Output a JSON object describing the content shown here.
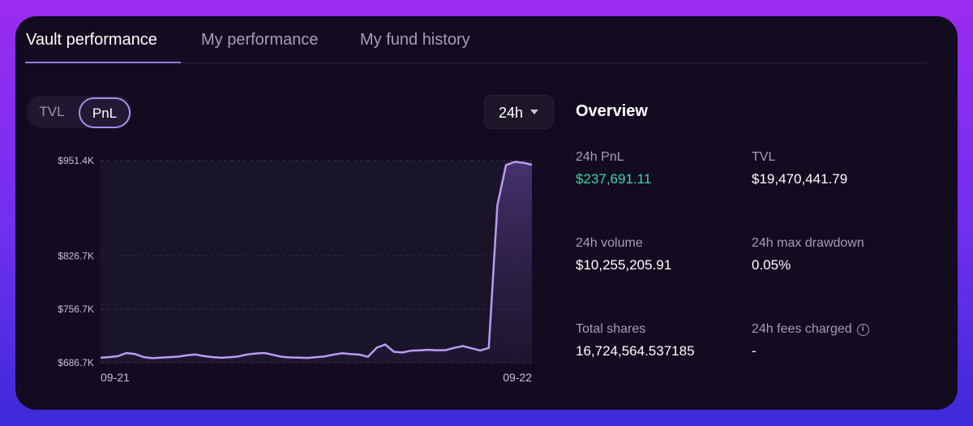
{
  "tabs": [
    "Vault performance",
    "My performance",
    "My fund history"
  ],
  "toggle": {
    "tvl": "TVL",
    "pnl": "PnL",
    "selected": "PnL"
  },
  "range": {
    "label": "24h"
  },
  "overview": {
    "title": "Overview",
    "stats": [
      {
        "label": "24h PnL",
        "value": "$237,691.11",
        "color": "#3fd6a8"
      },
      {
        "label": "TVL",
        "value": "$19,470,441.79"
      },
      {
        "label": "24h volume",
        "value": "$10,255,205.91"
      },
      {
        "label": "24h max drawdown",
        "value": "0.05%"
      },
      {
        "label": "Total shares",
        "value": "16,724,564.537185"
      },
      {
        "label": "24h fees charged",
        "value": "-",
        "icon": "info-icon"
      }
    ]
  },
  "chart_data": {
    "type": "area",
    "y_tick_labels": [
      "$951.4K",
      "$826.7K",
      "$756.7K",
      "$686.7K"
    ],
    "y_ticks": [
      951.4,
      826.7,
      756.7,
      686.7
    ],
    "x_tick_labels": [
      "09-21",
      "09-22"
    ],
    "ylim": [
      686.7,
      951.4
    ],
    "unit": "K USD",
    "line_color": "#b99cf0",
    "x": [
      0,
      2,
      4,
      6,
      8,
      10,
      12,
      14,
      16,
      18,
      20,
      22,
      24,
      26,
      28,
      30,
      32,
      34,
      36,
      38,
      40,
      42,
      44,
      46,
      48,
      50,
      52,
      54,
      56,
      58,
      60,
      62,
      64,
      66,
      68,
      70,
      72,
      74,
      76,
      78,
      80,
      82,
      84,
      86,
      88,
      90,
      92,
      94,
      96,
      98,
      100
    ],
    "values": [
      693.2,
      694.0,
      695.3,
      699.4,
      698.1,
      694.0,
      692.7,
      693.4,
      694.0,
      694.7,
      696.4,
      697.4,
      695.3,
      694.0,
      693.2,
      693.8,
      695.0,
      697.4,
      698.8,
      699.5,
      697.0,
      694.5,
      693.6,
      693.4,
      693.0,
      694.0,
      695.0,
      697.3,
      699.1,
      698.0,
      697.3,
      694.5,
      706.3,
      710.5,
      701.0,
      700.1,
      702.4,
      703.0,
      703.6,
      702.9,
      703.2,
      706.2,
      708.5,
      705.6,
      702.7,
      706.0,
      893.0,
      945.7,
      949.8,
      948.6,
      946.1
    ]
  }
}
